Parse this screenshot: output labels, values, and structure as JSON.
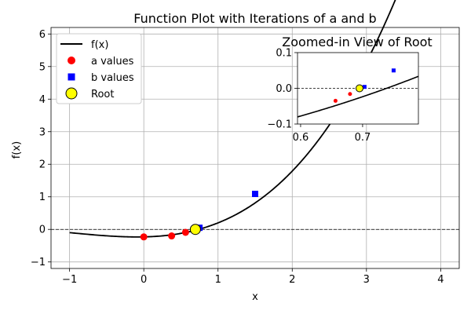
{
  "chart_data": {
    "main": {
      "type": "line",
      "title": "Function Plot with Iterations of a and b",
      "xlabel": "x",
      "ylabel": "f(x)",
      "xlim": [
        -1.25,
        4.25
      ],
      "ylim": [
        -1.2,
        6.2
      ],
      "xticks": [
        -1,
        0,
        1,
        2,
        3,
        4
      ],
      "yticks": [
        -1,
        0,
        1,
        2,
        3,
        4,
        5,
        6
      ],
      "grid": true,
      "zero_line": true,
      "legend_placement": "upper-left",
      "series": [
        {
          "name": "f(x)",
          "kind": "line",
          "color": "#000000",
          "marker": "none"
        },
        {
          "name": "a values",
          "kind": "scatter",
          "color": "#ff0000",
          "marker": "circle",
          "x": [
            0.0,
            0.375,
            0.5625,
            0.6875
          ],
          "y": [
            -0.23,
            -0.2,
            -0.09,
            0.0
          ]
        },
        {
          "name": "b values",
          "kind": "scatter",
          "color": "#0000ff",
          "marker": "square",
          "x": [
            1.5,
            0.75
          ],
          "y": [
            1.09,
            0.05
          ]
        },
        {
          "name": "Root",
          "kind": "scatter",
          "color": "#ffff00",
          "edgecolor": "#000000",
          "marker": "circle",
          "x": [
            0.695
          ],
          "y": [
            0.0
          ]
        }
      ]
    },
    "inset": {
      "type": "line",
      "title": "Zoomed-in View of Root",
      "xlim": [
        0.595,
        0.79
      ],
      "ylim": [
        -0.1,
        0.1
      ],
      "xticks": [
        0.6,
        0.7
      ],
      "yticks": [
        -0.1,
        0.0,
        0.1
      ],
      "xtick_labels": [
        "0.6",
        "0.7"
      ],
      "ytick_labels": [
        "−0.1",
        "0.0",
        "0.1"
      ],
      "grid": false,
      "zero_line": true,
      "series": [
        {
          "name": "f(x)",
          "kind": "line",
          "color": "#000000"
        },
        {
          "name": "a values",
          "kind": "scatter",
          "color": "#ff0000",
          "x": [
            0.6563,
            0.6797
          ],
          "y": [
            -0.035,
            -0.016
          ]
        },
        {
          "name": "b values",
          "kind": "scatter",
          "color": "#0000ff",
          "x": [
            0.7031,
            0.75
          ],
          "y": [
            0.004,
            0.05
          ]
        },
        {
          "name": "Root",
          "kind": "scatter",
          "color": "#ffff00",
          "x": [
            0.695
          ],
          "y": [
            0.0
          ]
        }
      ]
    }
  }
}
